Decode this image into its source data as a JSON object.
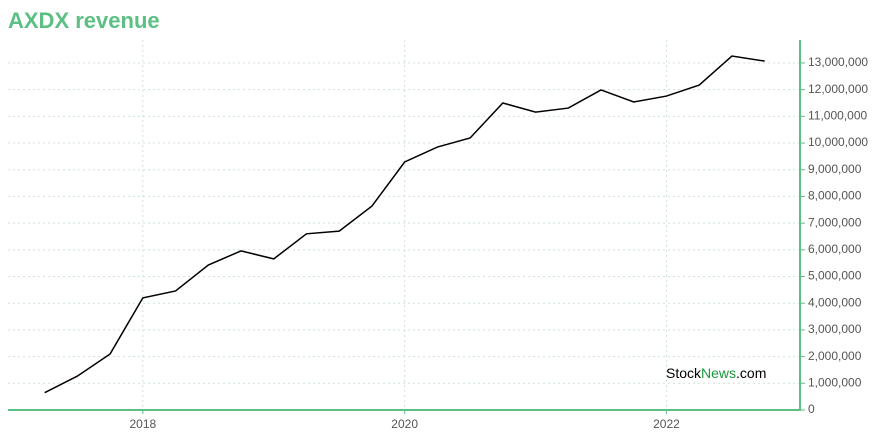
{
  "chart_data": {
    "type": "line",
    "title": "AXDX revenue",
    "x": [
      2017.25,
      2017.5,
      2017.75,
      2018.0,
      2018.25,
      2018.5,
      2018.75,
      2019.0,
      2019.25,
      2019.5,
      2019.75,
      2020.0,
      2020.25,
      2020.5,
      2020.75,
      2021.0,
      2021.25,
      2021.5,
      2021.75,
      2022.0,
      2022.25,
      2022.5,
      2022.75
    ],
    "series": [
      {
        "name": "AXDX revenue",
        "color": "#000000",
        "values": [
          650000,
          1270000,
          2100000,
          4200000,
          4460000,
          5430000,
          5960000,
          5660000,
          6600000,
          6700000,
          7640000,
          9290000,
          9850000,
          10190000,
          11500000,
          11160000,
          11310000,
          11990000,
          11540000,
          11760000,
          12170000,
          13260000,
          13070000
        ]
      }
    ],
    "xlim": [
      2016.97,
      2023.02
    ],
    "xticks": [
      2018,
      2020,
      2022
    ],
    "ylim": [
      0,
      13860000
    ],
    "yticks": [
      0,
      {
        "value": 1000000,
        "label": "1,000,000"
      },
      {
        "value": 2000000,
        "label": "2,000,000"
      },
      {
        "value": 3000000,
        "label": "3,000,000"
      },
      {
        "value": 4000000,
        "label": "4,000,000"
      },
      {
        "value": 5000000,
        "label": "5,000,000"
      },
      {
        "value": 6000000,
        "label": "6,000,000"
      },
      {
        "value": 7000000,
        "label": "7,000,000"
      },
      {
        "value": 8000000,
        "label": "8,000,000"
      },
      {
        "value": 9000000,
        "label": "9,000,000"
      },
      {
        "value": 10000000,
        "label": "10,000,000"
      },
      {
        "value": 11000000,
        "label": "11,000,000"
      },
      {
        "value": 12000000,
        "label": "12,000,000"
      },
      {
        "value": 13000000,
        "label": "13,000,000"
      }
    ],
    "grid": true,
    "axis_color": "#5cbf84",
    "watermark": [
      "Stock",
      "News",
      ".com"
    ]
  }
}
